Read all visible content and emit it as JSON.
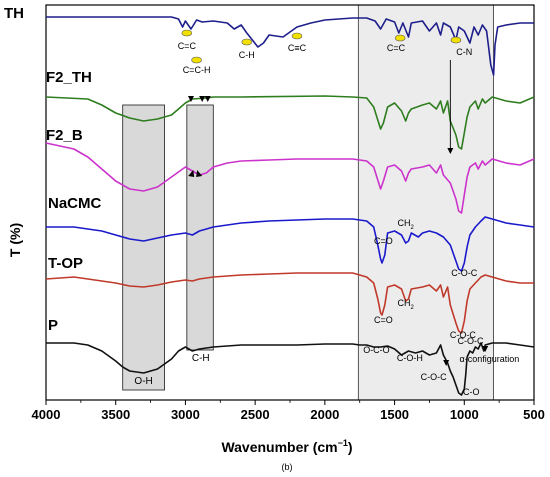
{
  "chart_data": {
    "type": "line",
    "panel_label": "(b)",
    "xlabel": "Wavenumber (cm",
    "xlabel_sup": "−1",
    "xlabel_tail": ")",
    "ylabel": "T (%)",
    "xlim": [
      4000,
      500
    ],
    "x_ticks": [
      4000,
      3500,
      3000,
      2500,
      2000,
      1500,
      1000,
      500
    ],
    "series": [
      {
        "name": "TH",
        "color": "#1f1f8c",
        "points": [
          [
            4000,
            12
          ],
          [
            3100,
            12
          ],
          [
            3050,
            14
          ],
          [
            3020,
            22
          ],
          [
            3000,
            16
          ],
          [
            2960,
            24
          ],
          [
            2920,
            15
          ],
          [
            2880,
            17
          ],
          [
            2800,
            16
          ],
          [
            2700,
            18
          ],
          [
            2650,
            24
          ],
          [
            2600,
            20
          ],
          [
            2560,
            28
          ],
          [
            2520,
            35
          ],
          [
            2480,
            42
          ],
          [
            2440,
            38
          ],
          [
            2400,
            30
          ],
          [
            2300,
            32
          ],
          [
            2250,
            27
          ],
          [
            2200,
            22
          ],
          [
            2100,
            18
          ],
          [
            2000,
            15
          ],
          [
            1900,
            14
          ],
          [
            1800,
            13
          ],
          [
            1700,
            13
          ],
          [
            1640,
            16
          ],
          [
            1600,
            24
          ],
          [
            1560,
            14
          ],
          [
            1500,
            17
          ],
          [
            1470,
            28
          ],
          [
            1440,
            18
          ],
          [
            1400,
            32
          ],
          [
            1380,
            18
          ],
          [
            1300,
            16
          ],
          [
            1250,
            26
          ],
          [
            1200,
            18
          ],
          [
            1170,
            30
          ],
          [
            1150,
            18
          ],
          [
            1100,
            22
          ],
          [
            1060,
            35
          ],
          [
            1040,
            22
          ],
          [
            1000,
            26
          ],
          [
            960,
            38
          ],
          [
            930,
            22
          ],
          [
            900,
            30
          ],
          [
            870,
            20
          ],
          [
            840,
            26
          ],
          [
            810,
            60
          ],
          [
            790,
            70
          ],
          [
            780,
            40
          ],
          [
            760,
            22
          ],
          [
            700,
            20
          ],
          [
            600,
            18
          ],
          [
            500,
            18
          ]
        ]
      },
      {
        "name": "F2_TH",
        "color": "#2e7d1f",
        "points": [
          [
            4000,
            92
          ],
          [
            3700,
            94
          ],
          [
            3600,
            100
          ],
          [
            3500,
            108
          ],
          [
            3400,
            113
          ],
          [
            3300,
            116
          ],
          [
            3200,
            114
          ],
          [
            3100,
            110
          ],
          [
            3050,
            104
          ],
          [
            3000,
            98
          ],
          [
            2950,
            94
          ],
          [
            2850,
            93
          ],
          [
            2800,
            92
          ],
          [
            2600,
            92
          ],
          [
            2000,
            91
          ],
          [
            1800,
            92
          ],
          [
            1700,
            93
          ],
          [
            1650,
            102
          ],
          [
            1600,
            124
          ],
          [
            1580,
            118
          ],
          [
            1550,
            102
          ],
          [
            1500,
            98
          ],
          [
            1450,
            106
          ],
          [
            1420,
            116
          ],
          [
            1400,
            108
          ],
          [
            1380,
            104
          ],
          [
            1300,
            100
          ],
          [
            1250,
            98
          ],
          [
            1200,
            104
          ],
          [
            1170,
            96
          ],
          [
            1150,
            108
          ],
          [
            1120,
            96
          ],
          [
            1100,
            116
          ],
          [
            1060,
            130
          ],
          [
            1040,
            142
          ],
          [
            1020,
            144
          ],
          [
            1000,
            128
          ],
          [
            980,
            112
          ],
          [
            960,
            102
          ],
          [
            920,
            96
          ],
          [
            900,
            104
          ],
          [
            870,
            94
          ],
          [
            850,
            98
          ],
          [
            800,
            92
          ],
          [
            700,
            96
          ],
          [
            600,
            98
          ],
          [
            500,
            92
          ]
        ]
      },
      {
        "name": "F2_B",
        "color": "#cc33cc",
        "points": [
          [
            4000,
            138
          ],
          [
            3800,
            144
          ],
          [
            3700,
            152
          ],
          [
            3600,
            164
          ],
          [
            3500,
            176
          ],
          [
            3400,
            184
          ],
          [
            3300,
            186
          ],
          [
            3200,
            182
          ],
          [
            3100,
            172
          ],
          [
            3000,
            162
          ],
          [
            2950,
            166
          ],
          [
            2900,
            170
          ],
          [
            2850,
            168
          ],
          [
            2800,
            162
          ],
          [
            2700,
            158
          ],
          [
            2600,
            156
          ],
          [
            2400,
            155
          ],
          [
            2200,
            154
          ],
          [
            2000,
            154
          ],
          [
            1800,
            154
          ],
          [
            1700,
            156
          ],
          [
            1650,
            162
          ],
          [
            1600,
            184
          ],
          [
            1580,
            176
          ],
          [
            1550,
            162
          ],
          [
            1500,
            160
          ],
          [
            1450,
            166
          ],
          [
            1420,
            176
          ],
          [
            1400,
            168
          ],
          [
            1380,
            164
          ],
          [
            1300,
            162
          ],
          [
            1250,
            160
          ],
          [
            1200,
            168
          ],
          [
            1170,
            160
          ],
          [
            1150,
            170
          ],
          [
            1100,
            178
          ],
          [
            1060,
            194
          ],
          [
            1040,
            206
          ],
          [
            1020,
            208
          ],
          [
            1000,
            190
          ],
          [
            980,
            172
          ],
          [
            960,
            162
          ],
          [
            920,
            158
          ],
          [
            900,
            164
          ],
          [
            870,
            156
          ],
          [
            850,
            160
          ],
          [
            800,
            154
          ],
          [
            700,
            158
          ],
          [
            600,
            160
          ],
          [
            500,
            154
          ]
        ]
      },
      {
        "name": "NaCMC",
        "color": "#1a1acc",
        "points": [
          [
            4000,
            222
          ],
          [
            3800,
            222
          ],
          [
            3700,
            224
          ],
          [
            3600,
            226
          ],
          [
            3500,
            230
          ],
          [
            3400,
            234
          ],
          [
            3300,
            236
          ],
          [
            3200,
            233
          ],
          [
            3100,
            230
          ],
          [
            3000,
            228
          ],
          [
            2950,
            230
          ],
          [
            2900,
            226
          ],
          [
            2800,
            222
          ],
          [
            2600,
            218
          ],
          [
            2400,
            216
          ],
          [
            2200,
            215
          ],
          [
            2000,
            214
          ],
          [
            1800,
            214
          ],
          [
            1700,
            216
          ],
          [
            1650,
            222
          ],
          [
            1620,
            240
          ],
          [
            1600,
            254
          ],
          [
            1590,
            258
          ],
          [
            1570,
            250
          ],
          [
            1550,
            228
          ],
          [
            1500,
            226
          ],
          [
            1450,
            230
          ],
          [
            1420,
            238
          ],
          [
            1400,
            236
          ],
          [
            1380,
            228
          ],
          [
            1330,
            232
          ],
          [
            1300,
            228
          ],
          [
            1250,
            226
          ],
          [
            1200,
            228
          ],
          [
            1150,
            232
          ],
          [
            1100,
            240
          ],
          [
            1060,
            256
          ],
          [
            1040,
            264
          ],
          [
            1020,
            266
          ],
          [
            1000,
            258
          ],
          [
            980,
            242
          ],
          [
            960,
            230
          ],
          [
            920,
            222
          ],
          [
            880,
            216
          ],
          [
            850,
            212
          ],
          [
            800,
            214
          ],
          [
            700,
            218
          ],
          [
            600,
            220
          ],
          [
            500,
            222
          ]
        ]
      },
      {
        "name": "T-OP",
        "color": "#c0392b",
        "points": [
          [
            4000,
            274
          ],
          [
            3800,
            272
          ],
          [
            3700,
            274
          ],
          [
            3600,
            276
          ],
          [
            3500,
            278
          ],
          [
            3400,
            281
          ],
          [
            3300,
            282
          ],
          [
            3200,
            280
          ],
          [
            3100,
            277
          ],
          [
            3000,
            275
          ],
          [
            2950,
            276
          ],
          [
            2900,
            274
          ],
          [
            2800,
            272
          ],
          [
            2600,
            270
          ],
          [
            2400,
            269
          ],
          [
            2200,
            268
          ],
          [
            2000,
            268
          ],
          [
            1800,
            268
          ],
          [
            1750,
            270
          ],
          [
            1700,
            272
          ],
          [
            1650,
            278
          ],
          [
            1620,
            294
          ],
          [
            1600,
            308
          ],
          [
            1590,
            310
          ],
          [
            1570,
            300
          ],
          [
            1550,
            282
          ],
          [
            1500,
            280
          ],
          [
            1450,
            284
          ],
          [
            1420,
            296
          ],
          [
            1400,
            294
          ],
          [
            1380,
            284
          ],
          [
            1300,
            282
          ],
          [
            1250,
            280
          ],
          [
            1200,
            286
          ],
          [
            1170,
            280
          ],
          [
            1150,
            292
          ],
          [
            1120,
            282
          ],
          [
            1100,
            300
          ],
          [
            1060,
            318
          ],
          [
            1040,
            326
          ],
          [
            1020,
            328
          ],
          [
            1000,
            316
          ],
          [
            980,
            296
          ],
          [
            960,
            284
          ],
          [
            920,
            278
          ],
          [
            880,
            272
          ],
          [
            850,
            270
          ],
          [
            800,
            272
          ],
          [
            700,
            276
          ],
          [
            600,
            278
          ],
          [
            500,
            278
          ]
        ]
      },
      {
        "name": "P",
        "color": "#111111",
        "points": [
          [
            4000,
            338
          ],
          [
            3800,
            338
          ],
          [
            3700,
            340
          ],
          [
            3600,
            346
          ],
          [
            3500,
            356
          ],
          [
            3450,
            362
          ],
          [
            3400,
            366
          ],
          [
            3300,
            368
          ],
          [
            3200,
            364
          ],
          [
            3100,
            354
          ],
          [
            3050,
            346
          ],
          [
            3000,
            342
          ],
          [
            2950,
            346
          ],
          [
            2900,
            344
          ],
          [
            2800,
            342
          ],
          [
            2600,
            340
          ],
          [
            2400,
            340
          ],
          [
            2200,
            340
          ],
          [
            2000,
            339
          ],
          [
            1800,
            339
          ],
          [
            1750,
            340
          ],
          [
            1700,
            340
          ],
          [
            1650,
            342
          ],
          [
            1600,
            342
          ],
          [
            1550,
            341
          ],
          [
            1500,
            344
          ],
          [
            1450,
            350
          ],
          [
            1400,
            346
          ],
          [
            1350,
            348
          ],
          [
            1300,
            346
          ],
          [
            1250,
            350
          ],
          [
            1200,
            348
          ],
          [
            1170,
            340
          ],
          [
            1150,
            350
          ],
          [
            1120,
            358
          ],
          [
            1100,
            366
          ],
          [
            1080,
            372
          ],
          [
            1060,
            380
          ],
          [
            1040,
            388
          ],
          [
            1020,
            390
          ],
          [
            1000,
            384
          ],
          [
            990,
            370
          ],
          [
            980,
            352
          ],
          [
            960,
            346
          ],
          [
            940,
            348
          ],
          [
            920,
            342
          ],
          [
            900,
            344
          ],
          [
            880,
            338
          ],
          [
            860,
            346
          ],
          [
            850,
            340
          ],
          [
            800,
            338
          ],
          [
            700,
            338
          ],
          [
            600,
            340
          ],
          [
            500,
            342
          ]
        ]
      }
    ],
    "annotations": {
      "th": [
        "C=C",
        "C=C-H",
        "C-H",
        "C≡C",
        "C=C",
        "C-N"
      ],
      "naCMC": [
        "C=O",
        "CH",
        "2",
        "C-O-C"
      ],
      "top": [
        "C=O",
        "CH",
        "2",
        "C-O-C"
      ],
      "p": [
        "O-C-O",
        "C-O-H",
        "C-O-C",
        "C-O-C",
        "α-configuration",
        "C-O"
      ],
      "regions": [
        "O-H",
        "C-H"
      ]
    },
    "highlight_bands": [
      [
        3450,
        3150
      ],
      [
        2990,
        2800
      ],
      [
        1760,
        790
      ]
    ]
  }
}
